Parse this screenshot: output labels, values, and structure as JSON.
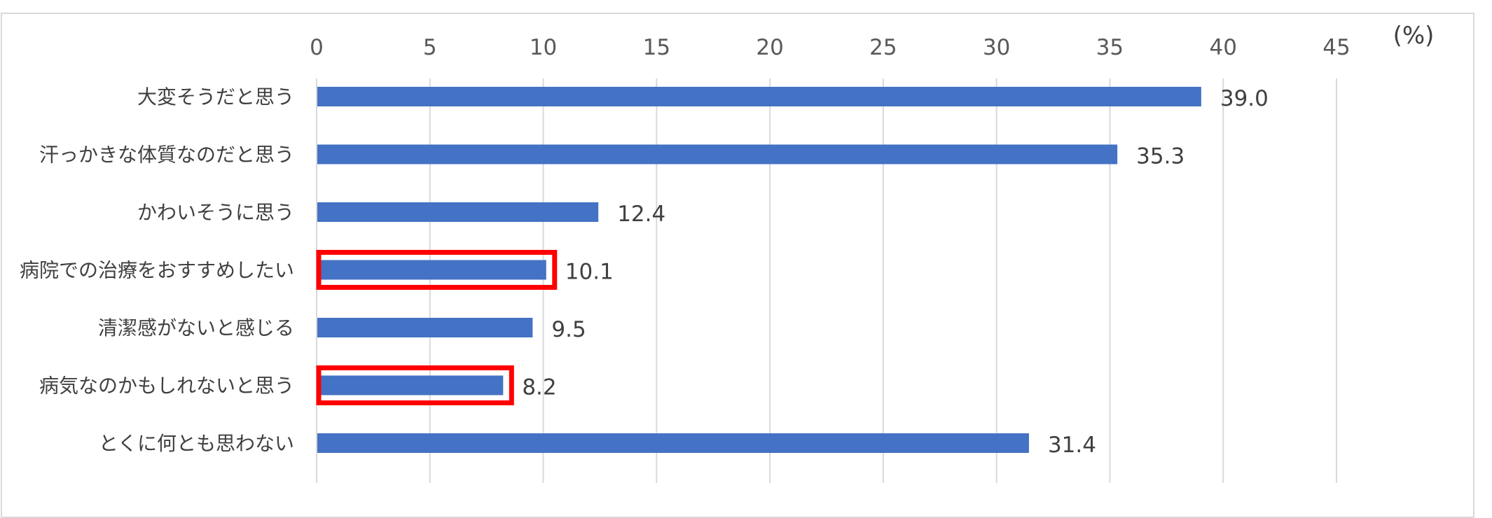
{
  "chart_data": {
    "type": "bar",
    "orientation": "horizontal",
    "unit_label": "(%)",
    "categories": [
      "大変そうだと思う",
      "汗っかきな体質なのだと思う",
      "かわいそうに思う",
      "病院での治療をおすすめしたい",
      "清潔感がないと感じる",
      "病気なのかもしれないと思う",
      "とくに何とも思わない"
    ],
    "values": [
      39.0,
      35.3,
      12.4,
      10.1,
      9.5,
      8.2,
      31.4
    ],
    "value_labels": [
      "39.0",
      "35.3",
      "12.4",
      "10.1",
      "9.5",
      "8.2",
      "31.4"
    ],
    "xlim": [
      0,
      45
    ],
    "xticks": [
      0,
      5,
      10,
      15,
      20,
      25,
      30,
      35,
      40,
      45
    ],
    "xtick_labels": [
      "0",
      "5",
      "10",
      "15",
      "20",
      "25",
      "30",
      "35",
      "40",
      "45"
    ],
    "grid": true,
    "axis_position": "top",
    "highlighted_categories": [
      "病院での治療をおすすめしたい",
      "病気なのかもしれないと思う"
    ],
    "colors": {
      "bar": "#4472c4",
      "highlight": "#ff0000",
      "grid": "#d9d9d9"
    }
  }
}
